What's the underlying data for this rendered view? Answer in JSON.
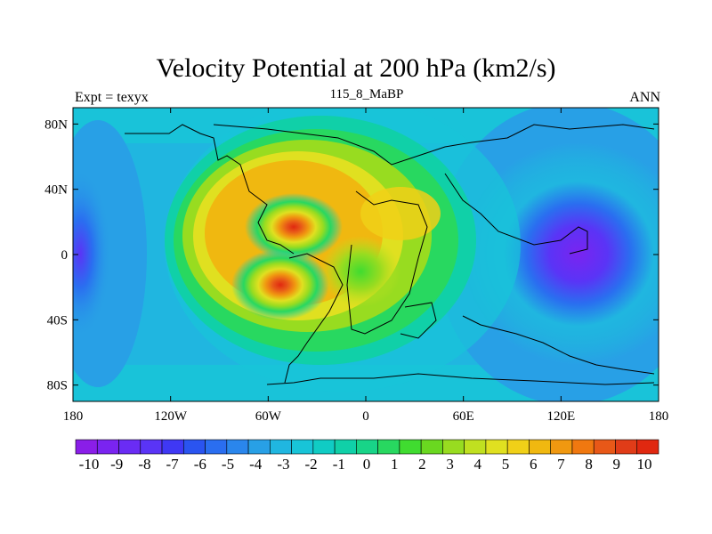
{
  "header": {
    "title": "Velocity Potential at 200 hPa (km2/s)",
    "left": "Expt = texyx",
    "center": "115_8_MaBP",
    "right": "ANN"
  },
  "chart_data": {
    "type": "heatmap",
    "title": "Velocity Potential at 200 hPa (km2/s)",
    "x_ticks": [
      "180",
      "120W",
      "60W",
      "0",
      "60E",
      "120E",
      "180"
    ],
    "x_tick_values": [
      -180,
      -120,
      -60,
      0,
      60,
      120,
      180
    ],
    "y_ticks": [
      "80N",
      "40N",
      "0",
      "40S",
      "80S"
    ],
    "y_tick_values": [
      80,
      40,
      0,
      -40,
      -80
    ],
    "xlim": [
      -180,
      180
    ],
    "ylim": [
      -90,
      90
    ],
    "colorbar_labels": [
      "-10",
      "-9",
      "-8",
      "-7",
      "-6",
      "-5",
      "-4",
      "-3",
      "-2",
      "-1",
      "0",
      "1",
      "2",
      "3",
      "4",
      "5",
      "6",
      "7",
      "8",
      "9",
      "10"
    ],
    "colorbar_colors": [
      "#8a1ee8",
      "#7a24f0",
      "#6a2cf4",
      "#5a34f6",
      "#3f38f4",
      "#2a54f0",
      "#2a6ef0",
      "#2a86ec",
      "#28a0e6",
      "#20b6e0",
      "#18c4d8",
      "#10ccc4",
      "#10d0a8",
      "#18d488",
      "#28d860",
      "#40dc30",
      "#6ad820",
      "#98dc20",
      "#c0e020",
      "#e0e020",
      "#f0d018",
      "#f0b810",
      "#f09810",
      "#f07810",
      "#e85818",
      "#e03c18",
      "#e02810"
    ],
    "maxima": [
      {
        "lon": -50,
        "lat": 25,
        "value": 9.5
      },
      {
        "lon": -45,
        "lat": -20,
        "value": 9.5
      }
    ],
    "minima": [
      {
        "lon": 145,
        "lat": 5,
        "value": -10
      },
      {
        "lon": -178,
        "lat": 0,
        "value": -7
      }
    ]
  }
}
